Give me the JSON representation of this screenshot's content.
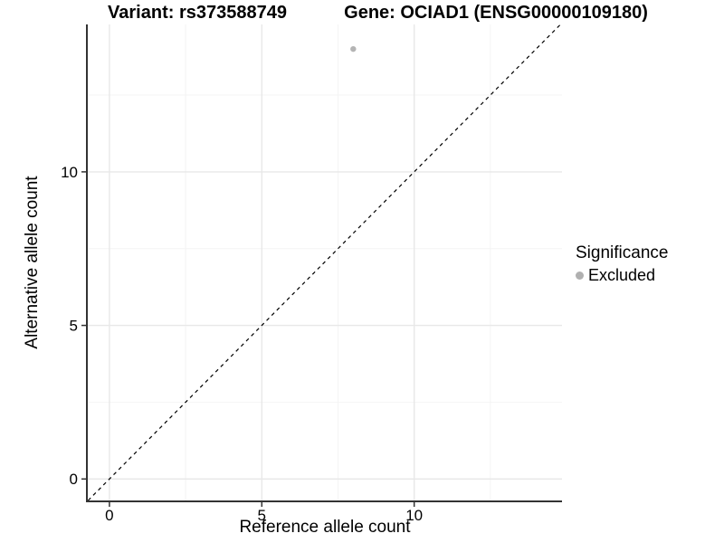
{
  "chart_data": {
    "type": "scatter",
    "title_left": "Variant: rs373588749",
    "title_right": "Gene: OCIAD1 (ENSG00000109180)",
    "xlabel": "Reference allele count",
    "ylabel": "Alternative allele count",
    "xlim": [
      -0.71,
      14.85
    ],
    "ylim": [
      -0.7,
      14.8
    ],
    "xticks": [
      0,
      5,
      10
    ],
    "yticks": [
      0,
      5,
      10
    ],
    "xminor": [
      2.5,
      7.5,
      12.5
    ],
    "yminor": [
      2.5,
      7.5,
      12.5
    ],
    "grid": "major-and-minor",
    "legend": {
      "title": "Significance",
      "position": "right",
      "entries": [
        {
          "label": "Excluded",
          "color": "#b0b0b0"
        }
      ]
    },
    "series": [
      {
        "name": "Excluded",
        "points": [
          {
            "x": 8,
            "y": 14
          }
        ]
      }
    ],
    "reference_line": {
      "type": "identity",
      "slope": 1,
      "intercept": 0,
      "style": "dashed",
      "color": "#000000"
    },
    "colors": {
      "axis": "#333333",
      "tick_label": "#000000",
      "grid_major": "#e8e8e8",
      "grid_minor": "#f4f4f4",
      "point": "#b4b4b4"
    }
  }
}
